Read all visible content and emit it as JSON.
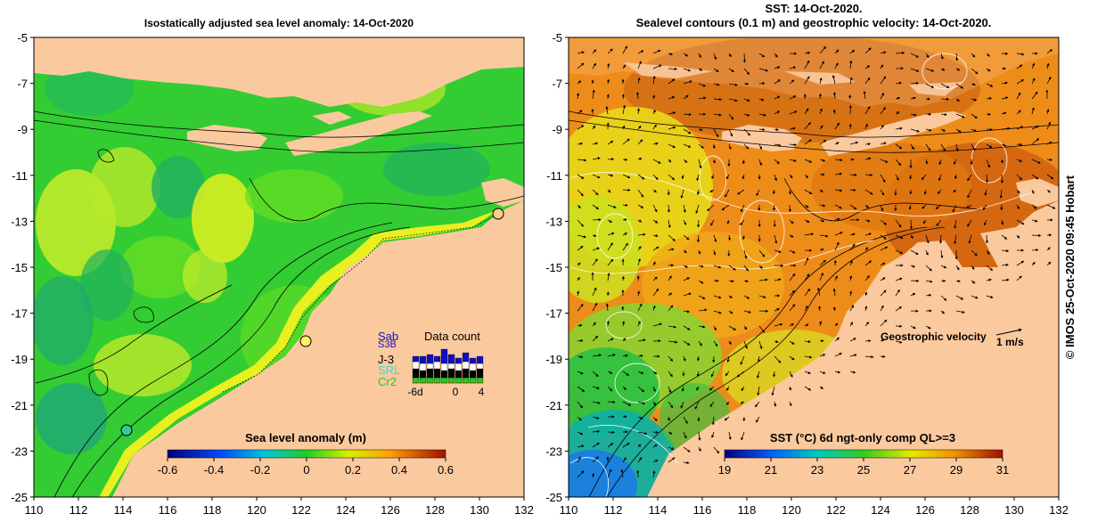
{
  "left_panel": {
    "title": "Isostatically adjusted sea level anomaly: 14-Oct-2020",
    "colorbar_label": "Sea level anomaly (m)",
    "colorbar_ticks": [
      "-0.6",
      "-0.4",
      "-0.2",
      "0",
      "0.2",
      "0.4",
      "0.6"
    ],
    "data_count": {
      "title": "Data count",
      "satellites": [
        {
          "name": "Sab",
          "color": "#1010c0"
        },
        {
          "name": "S3B",
          "color": "#1010c0"
        },
        {
          "name": "J-3",
          "color": "#000000"
        },
        {
          "name": "SRL",
          "color": "#33dddd"
        },
        {
          "name": "Cr2",
          "color": "#22cc22"
        }
      ],
      "axis_ticks": [
        "-6d",
        "0",
        "4"
      ]
    }
  },
  "right_panel": {
    "title_line1": "SST: 14-Oct-2020.",
    "title_line2": "Sealevel contours (0.1 m) and geostrophic velocity: 14-Oct-2020.",
    "colorbar_label": "SST (°C) 6d ngt-only comp QL>=3",
    "colorbar_ticks": [
      "19",
      "21",
      "23",
      "25",
      "27",
      "29",
      "31"
    ],
    "velocity_label": "Geostrophic velocity",
    "velocity_scale": "1 m/s"
  },
  "axes": {
    "y_ticks": [
      "-5",
      "-7",
      "-9",
      "-11",
      "-13",
      "-15",
      "-17",
      "-19",
      "-21",
      "-23",
      "-25"
    ],
    "x_ticks": [
      "110",
      "112",
      "114",
      "116",
      "118",
      "120",
      "122",
      "124",
      "126",
      "128",
      "130",
      "132"
    ],
    "lon_range": [
      110,
      132
    ],
    "lat_range": [
      -25,
      -5
    ]
  },
  "credit": "© IMOS 25-Oct-2020 09:45 Hobart",
  "colors": {
    "land": "#fbc99e",
    "sla_background": "#33cc33",
    "sst_background": "#ee8c1a"
  }
}
